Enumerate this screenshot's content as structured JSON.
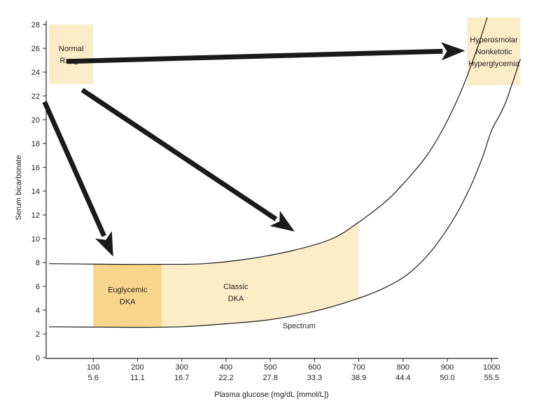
{
  "chart_data": {
    "type": "diagram",
    "xlabel": "Plasma glucose (mg/dL [mmol/L])",
    "ylabel": "Serum bicarbonate",
    "xlim": [
      0,
      1000
    ],
    "ylim": [
      0,
      28
    ],
    "x_ticks": [
      {
        "value": 100,
        "label": "100",
        "sublabel": "5.6"
      },
      {
        "value": 200,
        "label": "200",
        "sublabel": "11.1"
      },
      {
        "value": 300,
        "label": "300",
        "sublabel": "16.7"
      },
      {
        "value": 400,
        "label": "400",
        "sublabel": "22.2"
      },
      {
        "value": 500,
        "label": "500",
        "sublabel": "27.8"
      },
      {
        "value": 600,
        "label": "600",
        "sublabel": "33.3"
      },
      {
        "value": 700,
        "label": "700",
        "sublabel": "38.9"
      },
      {
        "value": 800,
        "label": "800",
        "sublabel": "44.4"
      },
      {
        "value": 900,
        "label": "900",
        "sublabel": "50.0"
      },
      {
        "value": 1000,
        "label": "1000",
        "sublabel": "55.5"
      }
    ],
    "y_ticks": [
      0,
      2,
      4,
      6,
      8,
      10,
      12,
      14,
      16,
      18,
      20,
      22,
      24,
      26,
      28
    ],
    "upper_curve": [
      [
        0,
        7.9
      ],
      [
        150,
        7.85
      ],
      [
        250,
        7.85
      ],
      [
        350,
        7.9
      ],
      [
        450,
        8.3
      ],
      [
        550,
        9.0
      ],
      [
        640,
        10.0
      ],
      [
        700,
        11.4
      ],
      [
        760,
        13.1
      ],
      [
        800,
        14.6
      ],
      [
        850,
        16.8
      ],
      [
        890,
        19.2
      ],
      [
        930,
        22.3
      ],
      [
        960,
        25.2
      ],
      [
        980,
        27.4
      ],
      [
        990,
        28.6
      ]
    ],
    "lower_curve": [
      [
        0,
        2.6
      ],
      [
        200,
        2.55
      ],
      [
        300,
        2.6
      ],
      [
        400,
        2.85
      ],
      [
        500,
        3.2
      ],
      [
        600,
        3.9
      ],
      [
        700,
        5.0
      ],
      [
        760,
        5.9
      ],
      [
        810,
        7.0
      ],
      [
        860,
        8.8
      ],
      [
        910,
        11.4
      ],
      [
        950,
        14.2
      ],
      [
        980,
        16.9
      ],
      [
        1000,
        19.1
      ],
      [
        1030,
        21.3
      ],
      [
        1065,
        25.1
      ]
    ],
    "regions": [
      {
        "id": "normal",
        "lines": [
          "Normal",
          "Range"
        ],
        "x": [
          0,
          100
        ],
        "y": [
          23,
          28
        ],
        "color": "#fbecc8"
      },
      {
        "id": "euglycemic",
        "lines": [
          "Euglycemic",
          "DKA"
        ],
        "x": [
          100,
          255
        ],
        "y": [
          2.6,
          7.85
        ],
        "color": "#f7d68c"
      },
      {
        "id": "classic",
        "lines": [
          "Classic",
          "DKA"
        ],
        "x": [
          255,
          700
        ],
        "between_curves": true,
        "color": "#fcedc9"
      },
      {
        "id": "hhs",
        "lines": [
          "Hyperosmolar",
          "Nonketotic",
          "Hyperglycemia"
        ],
        "x": [
          945,
          1065
        ],
        "y": [
          22.9,
          28.6
        ],
        "color": "#fbecc8"
      }
    ],
    "annotations": [
      {
        "text": "Spectrum",
        "x": 565,
        "y": 2.6
      }
    ],
    "arrows": [
      {
        "from": "normal",
        "to": "hhs",
        "start": [
          40,
          24.9
        ],
        "end": [
          940,
          25.8
        ]
      },
      {
        "from": "normal",
        "to": "euglycemic",
        "start": [
          -10,
          21.5
        ],
        "end": [
          145,
          8.5
        ]
      },
      {
        "from": "normal",
        "to": "classic",
        "start": [
          75,
          22.5
        ],
        "end": [
          555,
          10.6
        ]
      }
    ],
    "colors": {
      "axis": "#222222",
      "arrow": "#1a1a1a",
      "text": "#222222",
      "region_light": "#fcedc9",
      "region_dark": "#f7d68c"
    }
  }
}
